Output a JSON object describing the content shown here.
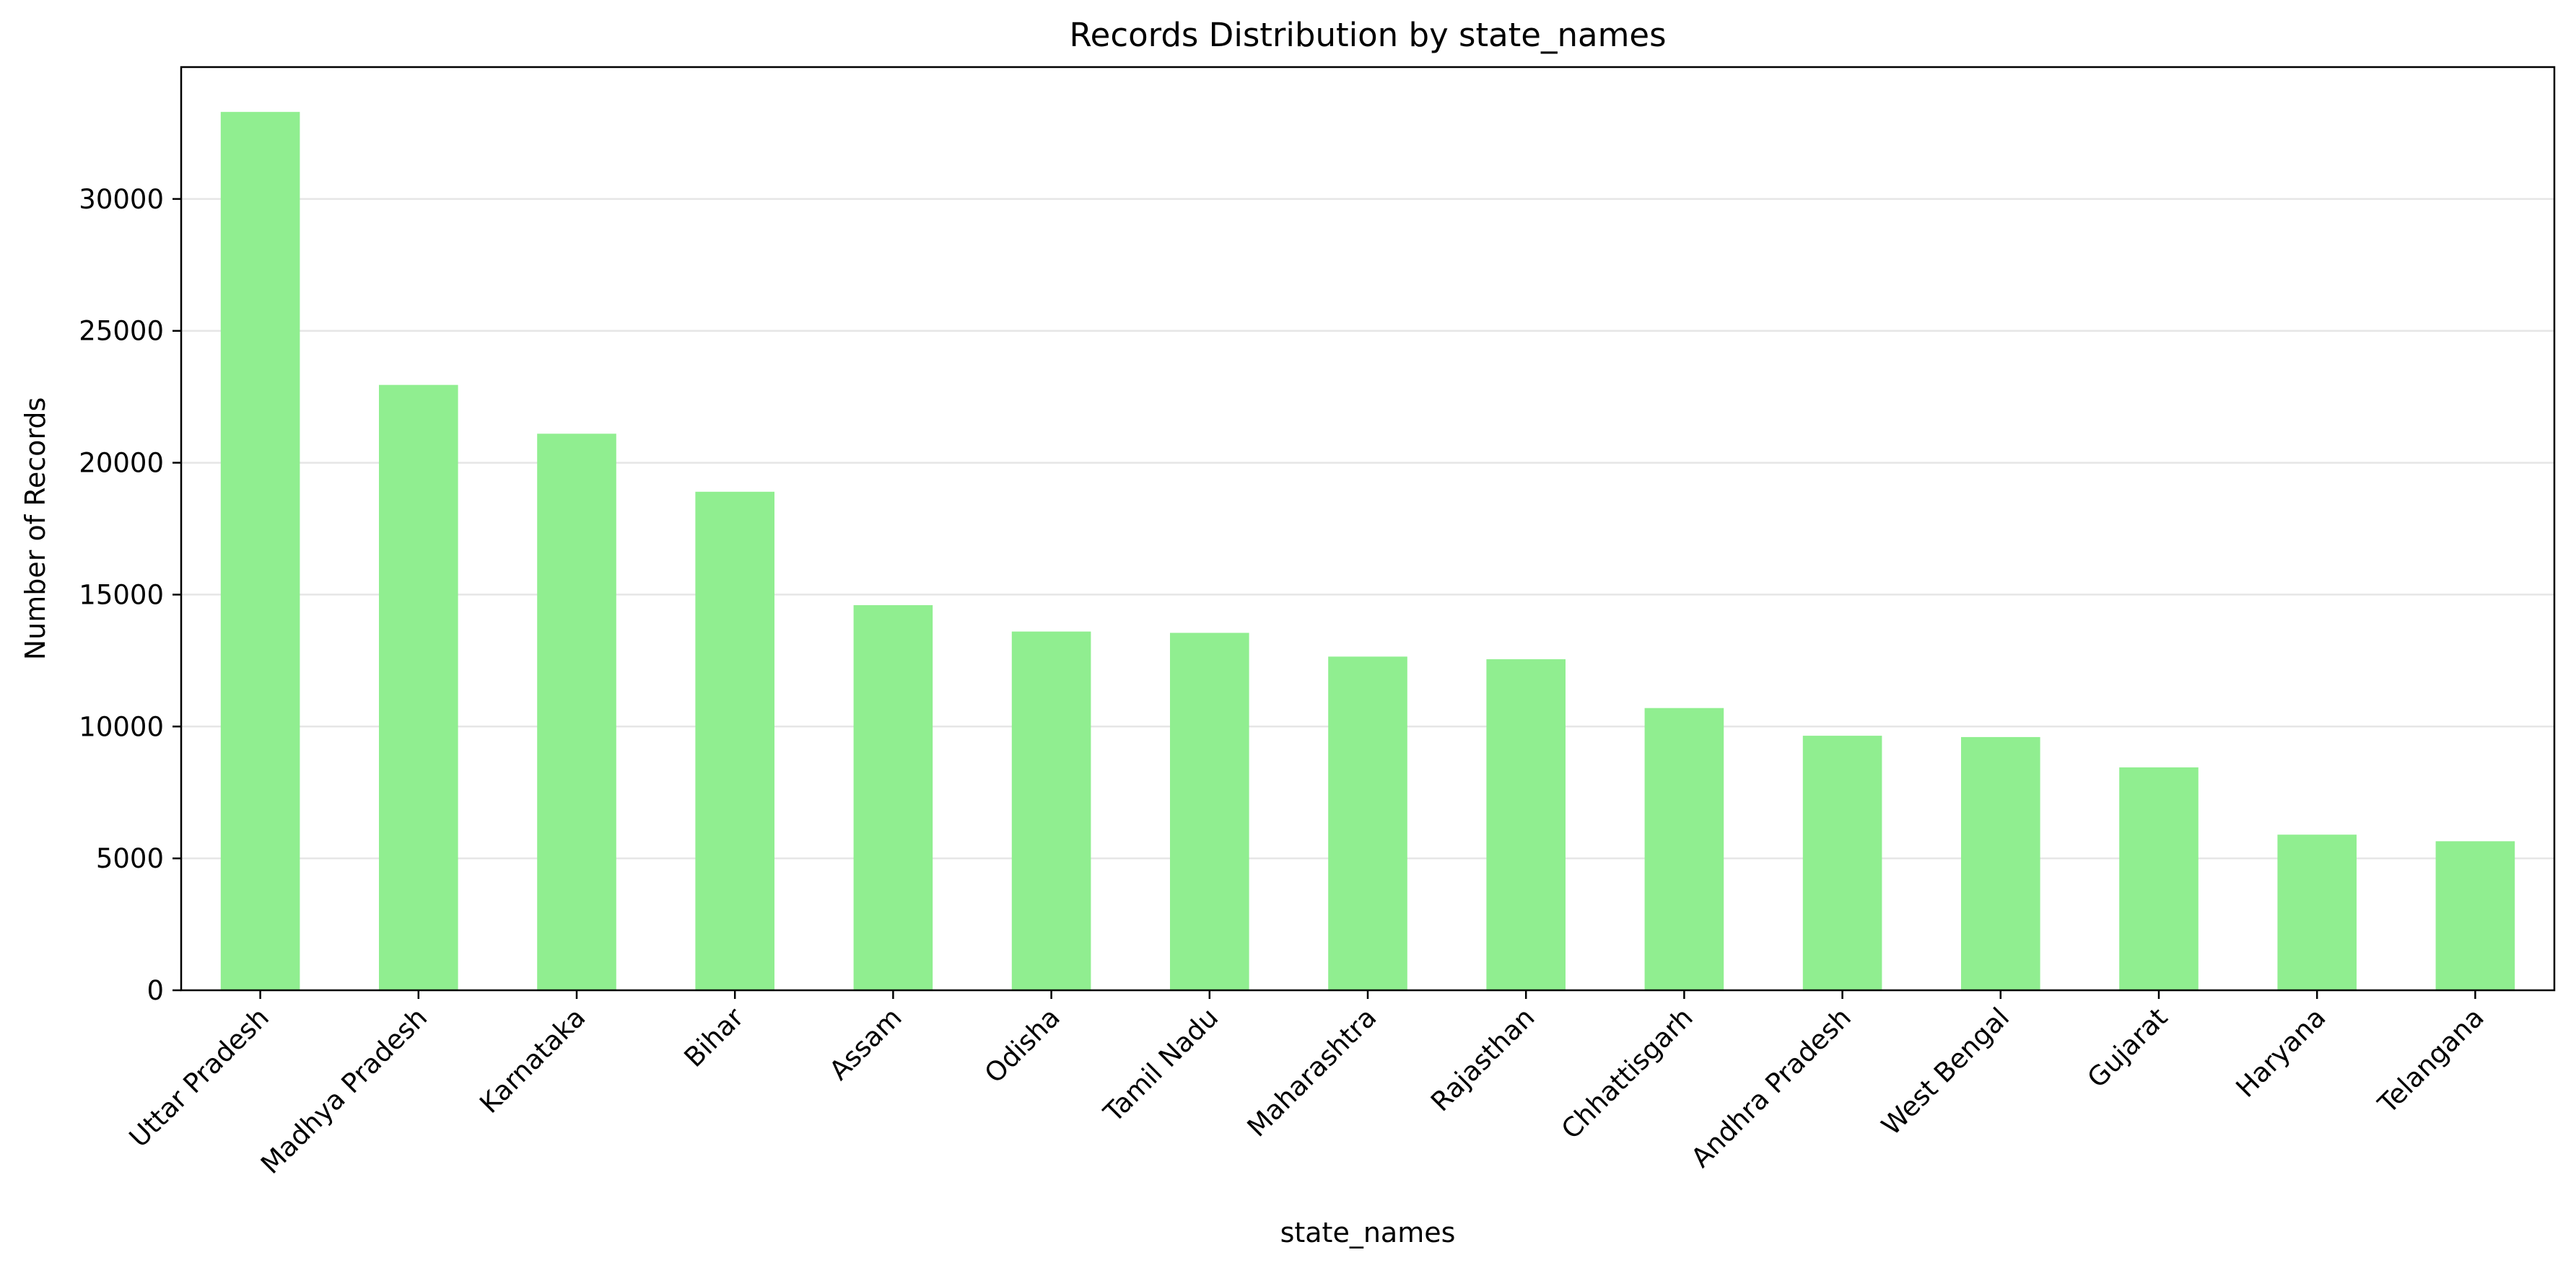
{
  "chart_data": {
    "type": "bar",
    "title": "Records Distribution by state_names",
    "xlabel": "state_names",
    "ylabel": "Number of Records",
    "categories": [
      "Uttar Pradesh",
      "Madhya Pradesh",
      "Karnataka",
      "Bihar",
      "Assam",
      "Odisha",
      "Tamil Nadu",
      "Maharashtra",
      "Rajasthan",
      "Chhattisgarh",
      "Andhra Pradesh",
      "West Bengal",
      "Gujarat",
      "Haryana",
      "Telangana"
    ],
    "values": [
      33300,
      22950,
      21100,
      18900,
      14600,
      13600,
      13550,
      12650,
      12550,
      10700,
      9650,
      9600,
      8450,
      5900,
      5650
    ],
    "ylim": [
      0,
      35000
    ],
    "yticks": [
      0,
      5000,
      10000,
      15000,
      20000,
      25000,
      30000
    ],
    "bar_color": "#90ee90",
    "grid": "y",
    "legend": "none"
  }
}
